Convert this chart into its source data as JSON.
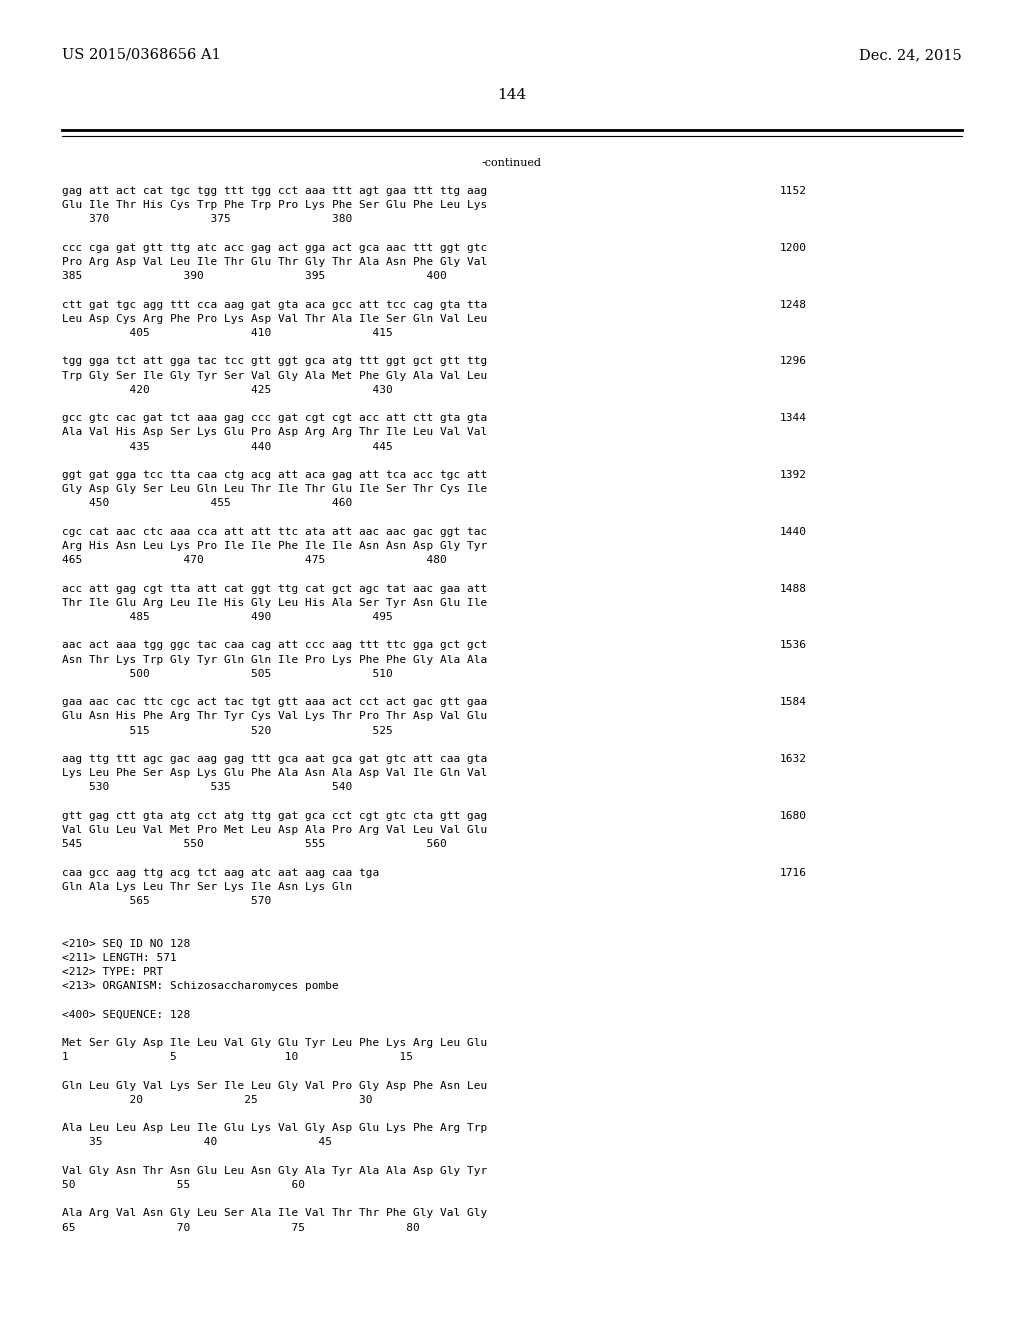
{
  "header_left": "US 2015/0368656 A1",
  "header_right": "Dec. 24, 2015",
  "page_number": "144",
  "continued_label": "-continued",
  "background_color": "#ffffff",
  "text_color": "#000000",
  "font_size_header": 10.5,
  "font_size_page": 11,
  "font_size_body": 8.0,
  "content_lines": [
    [
      "gag att act cat tgc tgg ttt tgg cct aaa ttt agt gaa ttt ttg aag",
      "1152"
    ],
    [
      "Glu Ile Thr His Cys Trp Phe Trp Pro Lys Phe Ser Glu Phe Leu Lys",
      ""
    ],
    [
      "    370               375               380",
      ""
    ],
    [
      "",
      ""
    ],
    [
      "ccc cga gat gtt ttg atc acc gag act gga act gca aac ttt ggt gtc",
      "1200"
    ],
    [
      "Pro Arg Asp Val Leu Ile Thr Glu Thr Gly Thr Ala Asn Phe Gly Val",
      ""
    ],
    [
      "385               390               395               400",
      ""
    ],
    [
      "",
      ""
    ],
    [
      "ctt gat tgc agg ttt cca aag gat gta aca gcc att tcc cag gta tta",
      "1248"
    ],
    [
      "Leu Asp Cys Arg Phe Pro Lys Asp Val Thr Ala Ile Ser Gln Val Leu",
      ""
    ],
    [
      "          405               410               415",
      ""
    ],
    [
      "",
      ""
    ],
    [
      "tgg gga tct att gga tac tcc gtt ggt gca atg ttt ggt gct gtt ttg",
      "1296"
    ],
    [
      "Trp Gly Ser Ile Gly Tyr Ser Val Gly Ala Met Phe Gly Ala Val Leu",
      ""
    ],
    [
      "          420               425               430",
      ""
    ],
    [
      "",
      ""
    ],
    [
      "gcc gtc cac gat tct aaa gag ccc gat cgt cgt acc att ctt gta gta",
      "1344"
    ],
    [
      "Ala Val His Asp Ser Lys Glu Pro Asp Arg Arg Thr Ile Leu Val Val",
      ""
    ],
    [
      "          435               440               445",
      ""
    ],
    [
      "",
      ""
    ],
    [
      "ggt gat gga tcc tta caa ctg acg att aca gag att tca acc tgc att",
      "1392"
    ],
    [
      "Gly Asp Gly Ser Leu Gln Leu Thr Ile Thr Glu Ile Ser Thr Cys Ile",
      ""
    ],
    [
      "    450               455               460",
      ""
    ],
    [
      "",
      ""
    ],
    [
      "cgc cat aac ctc aaa cca att att ttc ata att aac aac gac ggt tac",
      "1440"
    ],
    [
      "Arg His Asn Leu Lys Pro Ile Ile Phe Ile Ile Asn Asn Asp Gly Tyr",
      ""
    ],
    [
      "465               470               475               480",
      ""
    ],
    [
      "",
      ""
    ],
    [
      "acc att gag cgt tta att cat ggt ttg cat gct agc tat aac gaa att",
      "1488"
    ],
    [
      "Thr Ile Glu Arg Leu Ile His Gly Leu His Ala Ser Tyr Asn Glu Ile",
      ""
    ],
    [
      "          485               490               495",
      ""
    ],
    [
      "",
      ""
    ],
    [
      "aac act aaa tgg ggc tac caa cag att ccc aag ttt ttc gga gct gct",
      "1536"
    ],
    [
      "Asn Thr Lys Trp Gly Tyr Gln Gln Ile Pro Lys Phe Phe Gly Ala Ala",
      ""
    ],
    [
      "          500               505               510",
      ""
    ],
    [
      "",
      ""
    ],
    [
      "gaa aac cac ttc cgc act tac tgt gtt aaa act cct act gac gtt gaa",
      "1584"
    ],
    [
      "Glu Asn His Phe Arg Thr Tyr Cys Val Lys Thr Pro Thr Asp Val Glu",
      ""
    ],
    [
      "          515               520               525",
      ""
    ],
    [
      "",
      ""
    ],
    [
      "aag ttg ttt agc gac aag gag ttt gca aat gca gat gtc att caa gta",
      "1632"
    ],
    [
      "Lys Leu Phe Ser Asp Lys Glu Phe Ala Asn Ala Asp Val Ile Gln Val",
      ""
    ],
    [
      "    530               535               540",
      ""
    ],
    [
      "",
      ""
    ],
    [
      "gtt gag ctt gta atg cct atg ttg gat gca cct cgt gtc cta gtt gag",
      "1680"
    ],
    [
      "Val Glu Leu Val Met Pro Met Leu Asp Ala Pro Arg Val Leu Val Glu",
      ""
    ],
    [
      "545               550               555               560",
      ""
    ],
    [
      "",
      ""
    ],
    [
      "caa gcc aag ttg acg tct aag atc aat aag caa tga",
      "1716"
    ],
    [
      "Gln Ala Lys Leu Thr Ser Lys Ile Asn Lys Gln",
      ""
    ],
    [
      "          565               570",
      ""
    ],
    [
      "",
      ""
    ],
    [
      "",
      ""
    ],
    [
      "<210> SEQ ID NO 128",
      ""
    ],
    [
      "<211> LENGTH: 571",
      ""
    ],
    [
      "<212> TYPE: PRT",
      ""
    ],
    [
      "<213> ORGANISM: Schizosaccharomyces pombe",
      ""
    ],
    [
      "",
      ""
    ],
    [
      "<400> SEQUENCE: 128",
      ""
    ],
    [
      "",
      ""
    ],
    [
      "Met Ser Gly Asp Ile Leu Val Gly Glu Tyr Leu Phe Lys Arg Leu Glu",
      ""
    ],
    [
      "1               5                10               15",
      ""
    ],
    [
      "",
      ""
    ],
    [
      "Gln Leu Gly Val Lys Ser Ile Leu Gly Val Pro Gly Asp Phe Asn Leu",
      ""
    ],
    [
      "          20               25               30",
      ""
    ],
    [
      "",
      ""
    ],
    [
      "Ala Leu Leu Asp Leu Ile Glu Lys Val Gly Asp Glu Lys Phe Arg Trp",
      ""
    ],
    [
      "    35               40               45",
      ""
    ],
    [
      "",
      ""
    ],
    [
      "Val Gly Asn Thr Asn Glu Leu Asn Gly Ala Tyr Ala Ala Asp Gly Tyr",
      ""
    ],
    [
      "50               55               60",
      ""
    ],
    [
      "",
      ""
    ],
    [
      "Ala Arg Val Asn Gly Leu Ser Ala Ile Val Thr Thr Phe Gly Val Gly",
      ""
    ],
    [
      "65               70               75               80",
      ""
    ]
  ]
}
